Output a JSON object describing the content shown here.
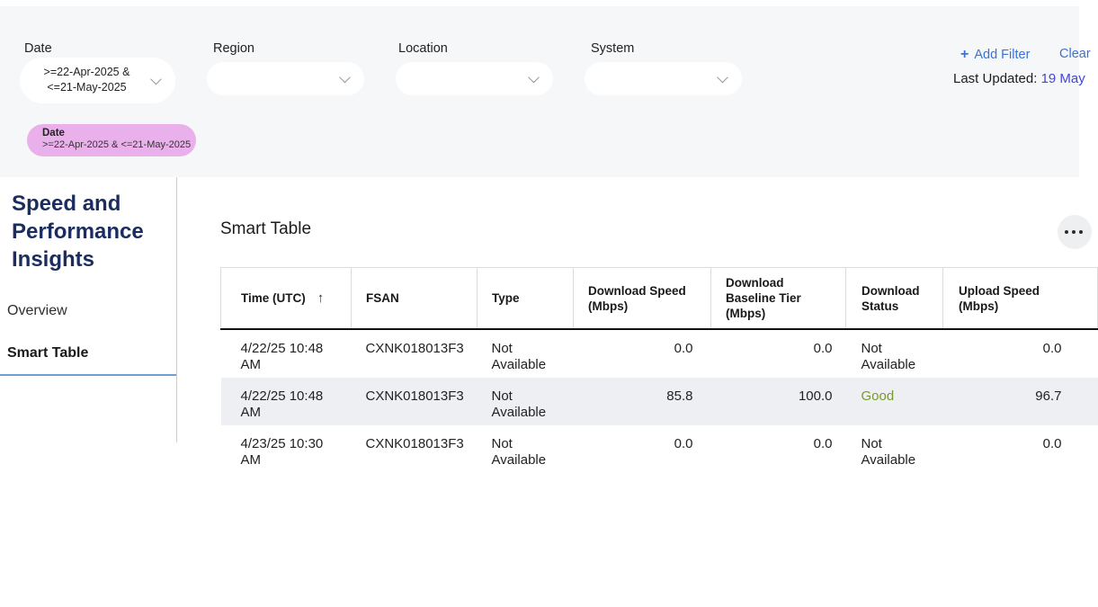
{
  "filters": {
    "groups": [
      {
        "label": "Date",
        "value_lines": [
          ">=22-Apr-2025 &",
          "<=21-May-2025"
        ]
      },
      {
        "label": "Region",
        "value_lines": []
      },
      {
        "label": "Location",
        "value_lines": []
      },
      {
        "label": "System",
        "value_lines": []
      }
    ],
    "add_filter": {
      "icon": "+",
      "label": "Add Filter"
    },
    "clear_label": "Clear",
    "last_updated": {
      "label": "Last Updated: ",
      "value": "19 May"
    },
    "active_chip": {
      "label": "Date",
      "value": ">=22-Apr-2025 & <=21-May-2025"
    }
  },
  "sidebar": {
    "title": "Speed and Performance Insights",
    "items": [
      {
        "label": "Overview"
      },
      {
        "label": "Smart Table"
      }
    ],
    "active_item": "Smart Table"
  },
  "main": {
    "title": "Smart Table"
  },
  "table": {
    "columns": [
      {
        "label": "Time (UTC)",
        "sort_icon": "↑"
      },
      {
        "label": "FSAN"
      },
      {
        "label": "Type"
      },
      {
        "label": "Download Speed (Mbps)"
      },
      {
        "label": "Download Baseline Tier (Mbps)"
      },
      {
        "label": "Download Status"
      },
      {
        "label": "Upload Speed (Mbps)"
      }
    ],
    "rows": [
      {
        "time": "4/22/25 10:48 AM",
        "fsan": "CXNK018013F3",
        "type": "Not Available",
        "download_speed": "0.0",
        "download_baseline_tier": "0.0",
        "download_status": "Not Available",
        "upload_speed": "0.0"
      },
      {
        "time": "4/22/25 10:48 AM",
        "fsan": "CXNK018013F3",
        "type": "Not Available",
        "download_speed": "85.8",
        "download_baseline_tier": "100.0",
        "download_status": "Good",
        "upload_speed": "96.7"
      },
      {
        "time": "4/23/25 10:30 AM",
        "fsan": "CXNK018013F3",
        "type": "Not Available",
        "download_speed": "0.0",
        "download_baseline_tier": "0.0",
        "download_status": "Not Available",
        "upload_speed": "0.0"
      }
    ]
  },
  "colors": {
    "panel_gray": "#f6f7f8",
    "link_blue": "#3b71d8",
    "last_updated_link": "#4446d9",
    "chip_pink": "#e9b0ec",
    "status_good_green": "#79992f",
    "sidebar_title_navy": "#1b2d5f",
    "active_underline_blue": "#6f9fd9",
    "row_stripe": "#edeff2"
  }
}
